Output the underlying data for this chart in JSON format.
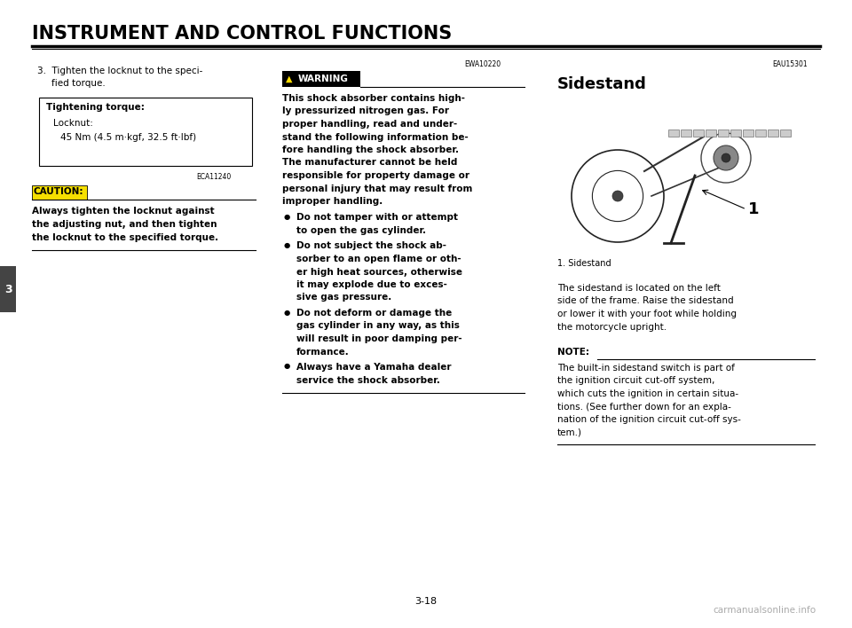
{
  "bg_color": "#ffffff",
  "title": "INSTRUMENT AND CONTROL FUNCTIONS",
  "page_number": "3-18",
  "watermark": "carmanualsonline.info",
  "chapter_tab_label": "3",
  "left_col_content": {
    "item3_line1": "3.  Tighten the locknut to the speci-",
    "item3_line2": "fied torque.",
    "tightening_box": {
      "title": "Tightening torque:",
      "line1": "Locknut:",
      "line2": "45 Nm (4.5 m·kgf, 32.5 ft·lbf)"
    },
    "caution_code": "ECA11240",
    "caution_label": "CAUTION:",
    "caution_text_line1": "Always tighten the locknut against",
    "caution_text_line2": "the adjusting nut, and then tighten",
    "caution_text_line3": "the locknut to the specified torque."
  },
  "mid_col_content": {
    "ewa_code": "EWA10220",
    "warning_label": "WARNING",
    "warning_para": "This shock absorber contains high-\nly pressurized nitrogen gas. For\nproper handling, read and under-\nstand the following information be-\nfore handling the shock absorber.\nThe manufacturer cannot be held\nresponsible for property damage or\npersonal injury that may result from\nimproper handling.",
    "bullets": [
      [
        "Do not tamper with or attempt",
        "to open the gas cylinder."
      ],
      [
        "Do not subject the shock ab-",
        "sorber to an open flame or oth-",
        "er high heat sources, otherwise",
        "it may explode due to exces-",
        "sive gas pressure."
      ],
      [
        "Do not deform or damage the",
        "gas cylinder in any way, as this",
        "will result in poor damping per-",
        "formance."
      ],
      [
        "Always have a Yamaha dealer",
        "service the shock absorber."
      ]
    ]
  },
  "right_col_content": {
    "eau_code": "EAU15301",
    "section_title": "Sidestand",
    "figure_label": "1. Sidestand",
    "callout": "1",
    "body_text": "The sidestand is located on the left\nside of the frame. Raise the sidestand\nor lower it with your foot while holding\nthe motorcycle upright.",
    "note_label": "NOTE:",
    "note_text": "The built-in sidestand switch is part of\nthe ignition circuit cut-off system,\nwhich cuts the ignition in certain situa-\ntions. (See further down for an expla-\nnation of the ignition circuit cut-off sys-\ntem.)"
  }
}
